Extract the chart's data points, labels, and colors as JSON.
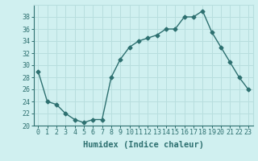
{
  "x": [
    0,
    1,
    2,
    3,
    4,
    5,
    6,
    7,
    8,
    9,
    10,
    11,
    12,
    13,
    14,
    15,
    16,
    17,
    18,
    19,
    20,
    21,
    22,
    23
  ],
  "y": [
    29,
    24,
    23.5,
    22,
    21,
    20.5,
    21,
    21,
    28,
    31,
    33,
    34,
    34.5,
    35,
    36,
    36,
    38,
    38,
    39,
    35.5,
    33,
    30.5,
    28,
    26
  ],
  "line_color": "#2d7070",
  "marker": "D",
  "marker_size": 2.5,
  "bg_color": "#d0f0f0",
  "grid_color": "#b8dede",
  "xlabel": "Humidex (Indice chaleur)",
  "ylim": [
    20,
    40
  ],
  "xlim": [
    -0.5,
    23.5
  ],
  "yticks": [
    20,
    22,
    24,
    26,
    28,
    30,
    32,
    34,
    36,
    38
  ],
  "xticks": [
    0,
    1,
    2,
    3,
    4,
    5,
    6,
    7,
    8,
    9,
    10,
    11,
    12,
    13,
    14,
    15,
    16,
    17,
    18,
    19,
    20,
    21,
    22,
    23
  ],
  "xlabel_fontsize": 7.5,
  "tick_fontsize": 6,
  "line_width": 1.0
}
